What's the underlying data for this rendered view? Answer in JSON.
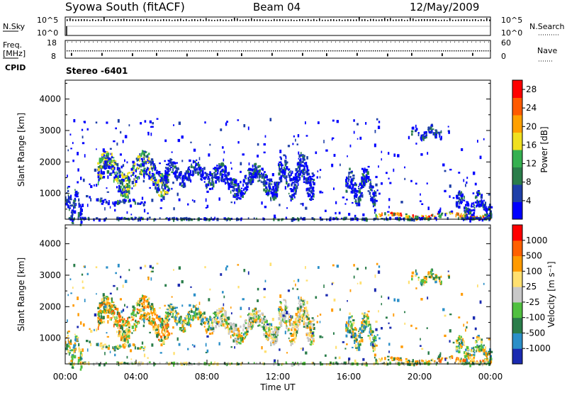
{
  "header": {
    "title": "Syowa South (fitACF)",
    "beam": "Beam 04",
    "date": "12/May/2009"
  },
  "chart_data": [
    {
      "type": "line",
      "name": "N.Sky panel",
      "left_label": "N.Sky",
      "right_label": "N.Search",
      "left_ticks": [
        "10^5",
        "10^0"
      ],
      "right_ticks": [
        "10^5",
        "10^0"
      ],
      "scale": "log",
      "trace_level": 4.2
    },
    {
      "type": "line",
      "name": "Freq panel",
      "left_label_lines": [
        "Freq.",
        "[MHz]"
      ],
      "right_label": "Nave",
      "left_ticks": [
        18,
        8
      ],
      "right_ticks": [
        60,
        0
      ],
      "freq_level": 12,
      "nave_level": 50,
      "nave_dips": [
        8,
        8,
        7,
        8,
        6,
        8,
        7,
        8,
        8,
        7,
        8,
        6,
        8,
        7,
        8
      ]
    },
    {
      "type": "heatmap",
      "name": "Power",
      "cpid_label": "CPID",
      "cpid_text": "Stereo -6401",
      "ylabel": "Slant Range [km]",
      "yticks": [
        1000,
        2000,
        3000,
        4000
      ],
      "ylim": [
        180,
        4600
      ],
      "xlim": [
        0,
        24
      ],
      "colorbar": {
        "label": "Power [dB]",
        "ticks": [
          4,
          8,
          12,
          16,
          20,
          24,
          28
        ],
        "range": [
          0,
          30
        ],
        "colors": [
          "#0000ff",
          "#1e3fa8",
          "#2a7d4a",
          "#35b050",
          "#f0e020",
          "#ffa000",
          "#ff5a00",
          "#ff0000"
        ]
      },
      "echo_bands": [
        {
          "t0": 1.8,
          "t1": 5.8,
          "r0": 1100,
          "r1": 2200
        },
        {
          "t0": 5.6,
          "t1": 8.2,
          "r0": 1350,
          "r1": 2000
        },
        {
          "t0": 8.2,
          "t1": 12.0,
          "r0": 1000,
          "r1": 1850
        },
        {
          "t0": 12.0,
          "t1": 14.0,
          "r0": 1000,
          "r1": 2150
        },
        {
          "t0": 1.5,
          "t1": 4.6,
          "r0": 700,
          "r1": 850
        },
        {
          "t0": 15.8,
          "t1": 17.5,
          "r0": 800,
          "r1": 1700
        },
        {
          "t0": 17.5,
          "t1": 24.0,
          "r0": 250,
          "r1": 400
        },
        {
          "t0": 0.0,
          "t1": 0.9,
          "r0": 200,
          "r1": 1100
        },
        {
          "t0": 19.5,
          "t1": 21.2,
          "r0": 2800,
          "r1": 3150
        },
        {
          "t0": 22.0,
          "t1": 24.0,
          "r0": 300,
          "r1": 1000
        }
      ]
    },
    {
      "type": "heatmap",
      "name": "Velocity",
      "ylabel": "Slant Range [km]",
      "yticks": [
        1000,
        2000,
        3000,
        4000
      ],
      "ylim": [
        180,
        4600
      ],
      "xlim": [
        0,
        24
      ],
      "xlabel": "Time UT",
      "xtick_labels": [
        "00:00",
        "04:00",
        "08:00",
        "12:00",
        "16:00",
        "20:00",
        "00:00"
      ],
      "colorbar": {
        "label": "Velocity [m s⁻¹]",
        "ticks": [
          "1000",
          "500",
          "100",
          "25",
          "-25",
          "-100",
          "-500",
          "-1000"
        ],
        "colors": [
          "#1a2ab0",
          "#2b8fc8",
          "#2a7d4a",
          "#50c040",
          "#c8c8c8",
          "#ffe070",
          "#ff9a00",
          "#ff6000",
          "#ff0000"
        ]
      }
    }
  ]
}
